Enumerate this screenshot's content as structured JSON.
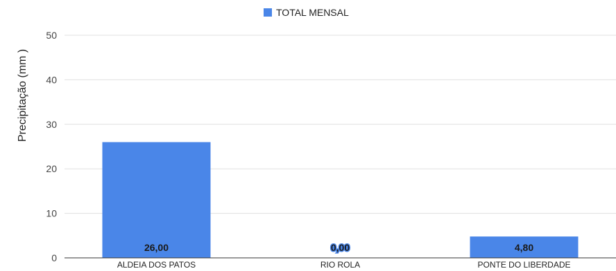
{
  "chart_data": {
    "type": "bar",
    "ylabel": "Precipitação (mm )",
    "ylim": [
      0,
      50
    ],
    "yticks": [
      "0",
      "10",
      "20",
      "30",
      "40",
      "50"
    ],
    "ytick_values": [
      0,
      10,
      20,
      30,
      40,
      50
    ],
    "grid": true,
    "legend_position": "top-center",
    "categories": [
      "ALDEIA DOS PATOS",
      "RIO ROLA",
      "PONTE DO LIBERDADE"
    ],
    "series": [
      {
        "name": "TOTAL MENSAL",
        "color": "#4a86e8",
        "values": [
          26.0,
          0.0,
          4.8
        ],
        "labels": [
          "26,00",
          "0,00",
          "4,80"
        ]
      }
    ]
  }
}
